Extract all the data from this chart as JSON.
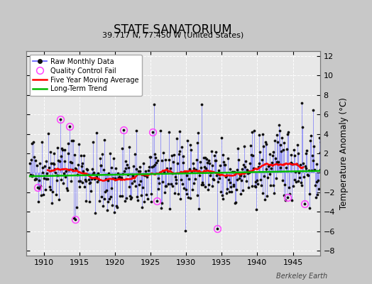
{
  "title": "STATE SANATORIUM",
  "subtitle": "39.717 N, 77.450 W (United States)",
  "ylabel": "Temperature Anomaly (°C)",
  "watermark": "Berkeley Earth",
  "xlim": [
    1907.5,
    1948.8
  ],
  "ylim": [
    -8.5,
    12.5
  ],
  "yticks": [
    -8,
    -6,
    -4,
    -2,
    0,
    2,
    4,
    6,
    8,
    10,
    12
  ],
  "xticks": [
    1910,
    1915,
    1920,
    1925,
    1930,
    1935,
    1940,
    1945
  ],
  "bg_color": "#c8c8c8",
  "plot_bg_color": "#e8e8e8",
  "line_color": "#5555ff",
  "dot_color": "#111111",
  "ma_color": "#ff0000",
  "trend_color": "#00bb00",
  "qc_color": "#ff44ff",
  "legend_items": [
    "Raw Monthly Data",
    "Quality Control Fail",
    "Five Year Moving Average",
    "Long-Term Trend"
  ],
  "seed": 42
}
